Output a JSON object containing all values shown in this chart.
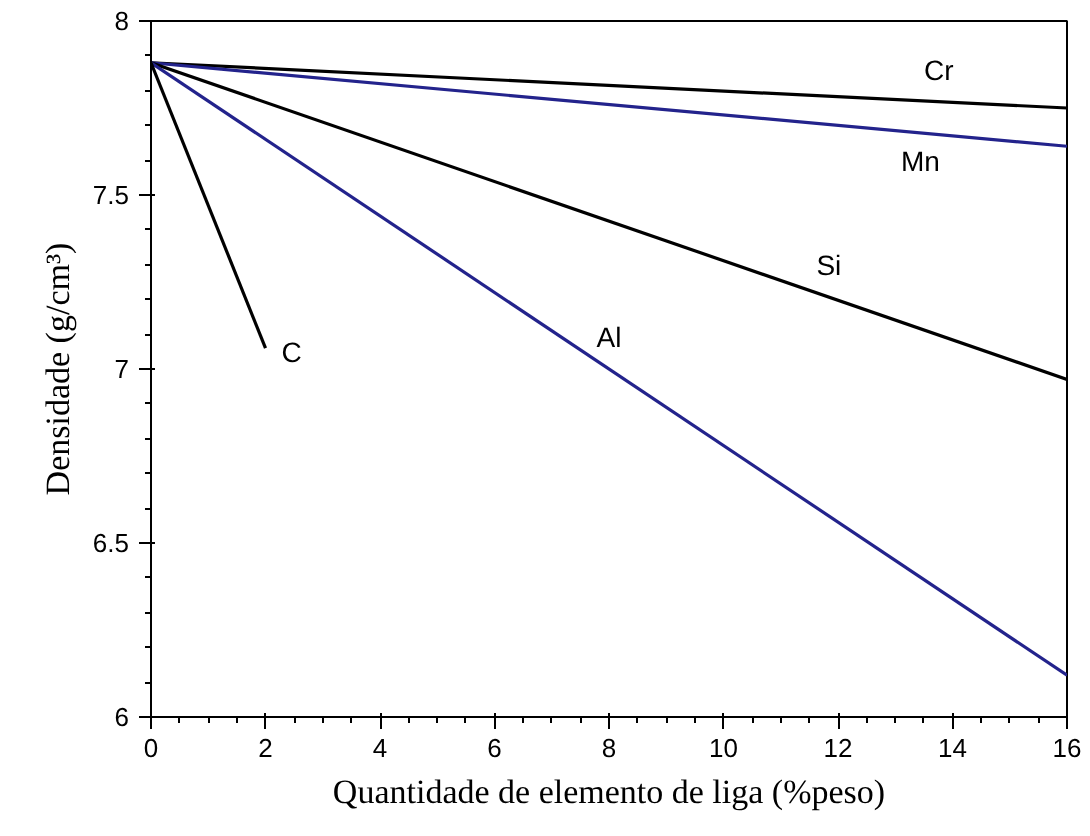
{
  "chart_data": {
    "type": "line",
    "xlabel": "Quantidade de elemento de liga (%peso)",
    "ylabel": "Densidade (g/cm³)",
    "xlim": [
      0,
      16
    ],
    "ylim": [
      6,
      8
    ],
    "xticks": [
      0,
      2,
      4,
      6,
      8,
      10,
      12,
      14,
      16
    ],
    "yticks": [
      6,
      6.5,
      7,
      7.5,
      8
    ],
    "grid": false,
    "legend": false,
    "marker": "none",
    "line_style": "solid",
    "series": [
      {
        "name": "Cr",
        "color": "#000000",
        "x": [
          0,
          16
        ],
        "values": [
          7.88,
          7.75
        ]
      },
      {
        "name": "Mn",
        "color": "#23238c",
        "x": [
          0,
          16
        ],
        "values": [
          7.88,
          7.64
        ]
      },
      {
        "name": "Si",
        "color": "#000000",
        "x": [
          0,
          16
        ],
        "values": [
          7.88,
          6.97
        ]
      },
      {
        "name": "Al",
        "color": "#23238c",
        "x": [
          0,
          16
        ],
        "values": [
          7.88,
          6.12
        ]
      },
      {
        "name": "C",
        "color": "#000000",
        "x": [
          0,
          2
        ],
        "values": [
          7.88,
          7.06
        ]
      }
    ]
  }
}
